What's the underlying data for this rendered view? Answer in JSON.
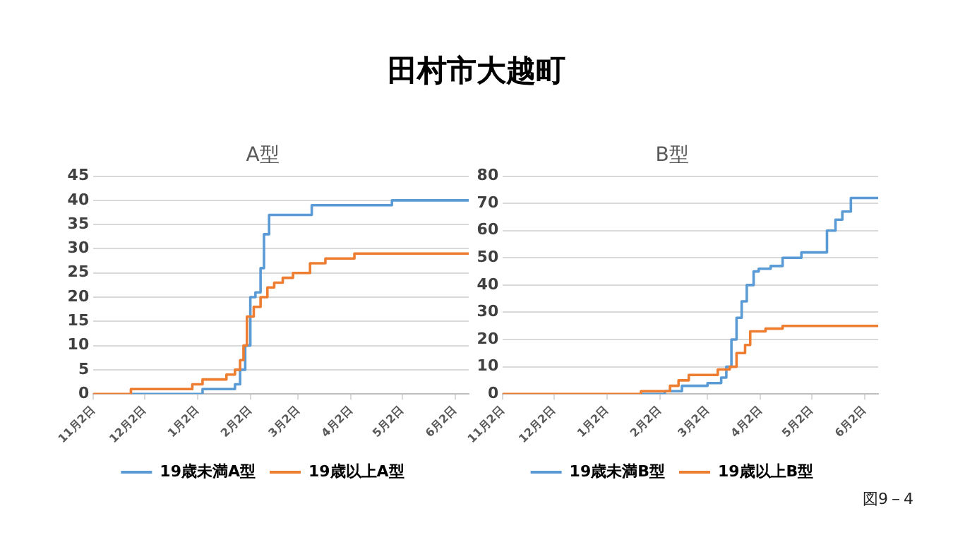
{
  "chart_data": [
    {
      "type": "other",
      "title": "田村市大越町",
      "annotations": [
        "図9－4"
      ]
    },
    {
      "type": "step",
      "title": "A型",
      "categories": [
        "11月2日",
        null,
        null,
        null,
        null,
        null,
        null,
        null,
        null,
        null,
        null,
        null,
        null,
        null,
        null,
        null,
        null,
        null,
        null,
        null,
        null,
        null,
        null,
        null,
        null,
        null,
        null,
        null,
        null,
        null,
        "12月2日",
        null,
        null,
        null,
        null,
        null,
        null,
        null,
        null,
        null,
        null,
        null,
        null,
        null,
        null,
        null,
        null,
        null,
        null,
        null,
        null,
        null,
        null,
        null,
        null,
        null,
        null,
        null,
        null,
        null,
        null,
        "1月2日",
        null,
        null,
        null,
        null,
        null,
        null,
        null,
        null,
        null,
        null,
        null,
        null,
        null,
        null,
        null,
        null,
        null,
        null,
        null,
        null,
        null,
        null,
        null,
        null,
        null,
        null,
        null,
        null,
        null,
        null,
        "2月2日",
        null,
        null,
        null,
        null,
        null,
        null,
        null,
        null,
        null,
        null,
        null,
        null,
        null,
        null,
        null,
        null,
        null,
        null,
        null,
        null,
        null,
        null,
        null,
        null,
        null,
        null,
        null,
        "3月2日",
        null,
        null,
        null,
        null,
        null,
        null,
        null,
        null,
        null,
        null,
        null,
        null,
        null,
        null,
        null,
        null,
        null,
        null,
        null,
        null,
        null,
        null,
        null,
        null,
        null,
        null,
        null,
        null,
        null,
        null,
        "4月2日",
        null,
        null,
        null,
        null,
        null,
        null,
        null,
        null,
        null,
        null,
        null,
        null,
        null,
        null,
        null,
        null,
        null,
        null,
        null,
        null,
        null,
        null,
        null,
        null,
        null,
        null,
        null,
        null,
        null,
        "5月2日",
        null,
        null,
        null,
        null,
        null,
        null,
        null,
        null,
        null,
        null,
        null,
        null,
        null,
        null,
        null,
        null,
        null,
        null,
        null,
        null,
        null,
        null,
        null,
        null,
        null,
        null,
        null,
        null,
        null,
        null,
        "6月2日",
        null,
        null,
        null,
        null,
        null,
        null,
        null,
        null
      ],
      "ylim": [
        0,
        45
      ],
      "yticks": [
        0,
        5,
        10,
        15,
        20,
        25,
        30,
        35,
        40,
        45
      ],
      "grid": "y",
      "legend": "bottom",
      "marker": "none",
      "series": [
        {
          "name": "19歳未満A型",
          "color": "#5b9bd5",
          "values": [
            null,
            null,
            null,
            null,
            null,
            null,
            null,
            null,
            null,
            null,
            null,
            null,
            null,
            null,
            null,
            null,
            null,
            null,
            null,
            null,
            null,
            null,
            0,
            0,
            0,
            0,
            0,
            0,
            0,
            0,
            0,
            0,
            0,
            0,
            0,
            0,
            0,
            0,
            0,
            0,
            0,
            0,
            0,
            0,
            0,
            0,
            0,
            0,
            0,
            0,
            0,
            0,
            0,
            0,
            0,
            0,
            0,
            0,
            0,
            0,
            0,
            0,
            0,
            0,
            1,
            1,
            1,
            1,
            1,
            1,
            1,
            1,
            1,
            1,
            1,
            1,
            1,
            1,
            1,
            1,
            1,
            1,
            1,
            2,
            2,
            2,
            5,
            5,
            5,
            10,
            10,
            10,
            20,
            20,
            20,
            21,
            21,
            21,
            26,
            26,
            33,
            33,
            33,
            37,
            37,
            37,
            37,
            37,
            37,
            37,
            37,
            37,
            37,
            37,
            37,
            37,
            37,
            37,
            37,
            37,
            37,
            37,
            37,
            37,
            37,
            37,
            37,
            37,
            39,
            39,
            39,
            39,
            39,
            39,
            39,
            39,
            39,
            39,
            39,
            39,
            39,
            39,
            39,
            39,
            39,
            39,
            39,
            39,
            39,
            39,
            39,
            39,
            39,
            39,
            39,
            39,
            39,
            39,
            39,
            39,
            39,
            39,
            39,
            39,
            39,
            39,
            39,
            39,
            39,
            39,
            39,
            39,
            39,
            39,
            39,
            40,
            40,
            40,
            40,
            40,
            40,
            40,
            40,
            40,
            40,
            40,
            40,
            40,
            40,
            40,
            40,
            40,
            40,
            40,
            40,
            40,
            40,
            40,
            40,
            40,
            40,
            40,
            40,
            40,
            40,
            40,
            40,
            40,
            40,
            40,
            40,
            40,
            40,
            40,
            40,
            40,
            40,
            40,
            40,
            40,
            40
          ]
        },
        {
          "name": "19歳以上A型",
          "color": "#ed7d31",
          "values": [
            0,
            0,
            0,
            0,
            0,
            0,
            0,
            0,
            0,
            0,
            0,
            0,
            0,
            0,
            0,
            0,
            0,
            0,
            0,
            0,
            0,
            0,
            1,
            1,
            1,
            1,
            1,
            1,
            1,
            1,
            1,
            1,
            1,
            1,
            1,
            1,
            1,
            1,
            1,
            1,
            1,
            1,
            1,
            1,
            1,
            1,
            1,
            1,
            1,
            1,
            1,
            1,
            1,
            1,
            1,
            1,
            1,
            1,
            2,
            2,
            2,
            2,
            2,
            2,
            3,
            3,
            3,
            3,
            3,
            3,
            3,
            3,
            3,
            3,
            3,
            3,
            3,
            3,
            4,
            4,
            4,
            4,
            4,
            5,
            5,
            5,
            7,
            7,
            10,
            10,
            16,
            16,
            16,
            16,
            18,
            18,
            18,
            18,
            20,
            20,
            20,
            20,
            22,
            22,
            22,
            22,
            23,
            23,
            23,
            23,
            23,
            24,
            24,
            24,
            24,
            24,
            24,
            25,
            25,
            25,
            25,
            25,
            25,
            25,
            25,
            25,
            25,
            27,
            27,
            27,
            27,
            27,
            27,
            27,
            27,
            27,
            28,
            28,
            28,
            28,
            28,
            28,
            28,
            28,
            28,
            28,
            28,
            28,
            28,
            28,
            28,
            28,
            28,
            29,
            29,
            29,
            29,
            29,
            29,
            29,
            29,
            29,
            29,
            29,
            29,
            29,
            29,
            29,
            29,
            29,
            29,
            29,
            29,
            29,
            29,
            29,
            29,
            29,
            29,
            29,
            29,
            29,
            29,
            29,
            29,
            29,
            29,
            29,
            29,
            29,
            29,
            29,
            29,
            29,
            29,
            29,
            29,
            29,
            29,
            29,
            29,
            29,
            29,
            29,
            29,
            29,
            29,
            29,
            29,
            29,
            29,
            29,
            29,
            29,
            29,
            29,
            29,
            29,
            29,
            29,
            29
          ]
        }
      ]
    },
    {
      "type": "step",
      "title": "B型",
      "categories": [
        "11月2日",
        null,
        null,
        null,
        null,
        null,
        null,
        null,
        null,
        null,
        null,
        null,
        null,
        null,
        null,
        null,
        null,
        null,
        null,
        null,
        null,
        null,
        null,
        null,
        null,
        null,
        null,
        null,
        null,
        null,
        "12月2日",
        null,
        null,
        null,
        null,
        null,
        null,
        null,
        null,
        null,
        null,
        null,
        null,
        null,
        null,
        null,
        null,
        null,
        null,
        null,
        null,
        null,
        null,
        null,
        null,
        null,
        null,
        null,
        null,
        null,
        null,
        "1月2日",
        null,
        null,
        null,
        null,
        null,
        null,
        null,
        null,
        null,
        null,
        null,
        null,
        null,
        null,
        null,
        null,
        null,
        null,
        null,
        null,
        null,
        null,
        null,
        null,
        null,
        null,
        null,
        null,
        null,
        null,
        "2月2日",
        null,
        null,
        null,
        null,
        null,
        null,
        null,
        null,
        null,
        null,
        null,
        null,
        null,
        null,
        null,
        null,
        null,
        null,
        null,
        null,
        null,
        null,
        null,
        null,
        null,
        null,
        null,
        "3月2日",
        null,
        null,
        null,
        null,
        null,
        null,
        null,
        null,
        null,
        null,
        null,
        null,
        null,
        null,
        null,
        null,
        null,
        null,
        null,
        null,
        null,
        null,
        null,
        null,
        null,
        null,
        null,
        null,
        null,
        null,
        "4月2日",
        null,
        null,
        null,
        null,
        null,
        null,
        null,
        null,
        null,
        null,
        null,
        null,
        null,
        null,
        null,
        null,
        null,
        null,
        null,
        null,
        null,
        null,
        null,
        null,
        null,
        null,
        null,
        null,
        null,
        "5月2日",
        null,
        null,
        null,
        null,
        null,
        null,
        null,
        null,
        null,
        null,
        null,
        null,
        null,
        null,
        null,
        null,
        null,
        null,
        null,
        null,
        null,
        null,
        null,
        null,
        null,
        null,
        null,
        null,
        null,
        null,
        "6月2日",
        null,
        null,
        null,
        null,
        null,
        null,
        null,
        null
      ],
      "ylim": [
        0,
        80
      ],
      "yticks": [
        0,
        10,
        20,
        30,
        40,
        50,
        60,
        70,
        80
      ],
      "grid": "y",
      "legend": "bottom",
      "marker": "none",
      "series": [
        {
          "name": "19歳未満B型",
          "color": "#5b9bd5",
          "values": [
            null,
            null,
            null,
            null,
            null,
            null,
            null,
            null,
            null,
            null,
            null,
            null,
            null,
            null,
            null,
            null,
            null,
            null,
            null,
            null,
            null,
            null,
            null,
            null,
            null,
            null,
            null,
            null,
            null,
            null,
            null,
            null,
            null,
            null,
            null,
            null,
            null,
            null,
            null,
            null,
            null,
            null,
            null,
            null,
            null,
            null,
            null,
            null,
            null,
            null,
            null,
            null,
            null,
            null,
            null,
            null,
            null,
            null,
            null,
            null,
            null,
            null,
            null,
            null,
            null,
            null,
            null,
            null,
            null,
            null,
            null,
            null,
            null,
            null,
            null,
            null,
            null,
            null,
            null,
            null,
            null,
            0,
            0,
            0,
            0,
            0,
            0,
            0,
            0,
            0,
            0,
            0,
            0,
            0,
            0,
            1,
            1,
            1,
            1,
            1,
            1,
            1,
            1,
            1,
            1,
            3,
            3,
            3,
            3,
            3,
            3,
            3,
            3,
            3,
            3,
            3,
            3,
            3,
            3,
            3,
            4,
            4,
            4,
            4,
            4,
            4,
            4,
            4,
            6,
            6,
            6,
            10,
            10,
            10,
            20,
            20,
            20,
            28,
            28,
            28,
            34,
            34,
            34,
            40,
            40,
            40,
            40,
            45,
            45,
            45,
            46,
            46,
            46,
            46,
            46,
            46,
            46,
            47,
            47,
            47,
            47,
            47,
            47,
            47,
            50,
            50,
            50,
            50,
            50,
            50,
            50,
            50,
            50,
            50,
            50,
            52,
            52,
            52,
            52,
            52,
            52,
            52,
            52,
            52,
            52,
            52,
            52,
            52,
            52,
            52,
            60,
            60,
            60,
            60,
            60,
            64,
            64,
            64,
            64,
            67,
            67,
            67,
            67,
            67,
            72,
            72,
            72,
            72,
            72,
            72,
            72,
            72,
            72,
            72,
            72,
            72,
            72,
            72,
            72,
            72,
            72
          ]
        },
        {
          "name": "19歳以上B型",
          "color": "#ed7d31",
          "values": [
            0,
            0,
            0,
            0,
            0,
            0,
            0,
            0,
            0,
            0,
            0,
            0,
            0,
            0,
            0,
            0,
            0,
            0,
            0,
            0,
            0,
            0,
            0,
            0,
            0,
            0,
            0,
            0,
            0,
            0,
            0,
            0,
            0,
            0,
            0,
            0,
            0,
            0,
            0,
            0,
            0,
            0,
            0,
            0,
            0,
            0,
            0,
            0,
            0,
            0,
            0,
            0,
            0,
            0,
            0,
            0,
            0,
            0,
            0,
            0,
            0,
            0,
            0,
            0,
            0,
            0,
            0,
            0,
            0,
            0,
            0,
            0,
            0,
            0,
            0,
            0,
            0,
            0,
            0,
            0,
            0,
            1,
            1,
            1,
            1,
            1,
            1,
            1,
            1,
            1,
            1,
            1,
            1,
            1,
            1,
            1,
            1,
            1,
            3,
            3,
            3,
            3,
            3,
            5,
            5,
            5,
            5,
            5,
            5,
            7,
            7,
            7,
            7,
            7,
            7,
            7,
            7,
            7,
            7,
            7,
            7,
            7,
            7,
            7,
            7,
            7,
            9,
            9,
            9,
            9,
            9,
            9,
            9,
            10,
            10,
            10,
            10,
            15,
            15,
            15,
            15,
            15,
            18,
            18,
            18,
            23,
            23,
            23,
            23,
            23,
            23,
            23,
            23,
            23,
            24,
            24,
            24,
            24,
            24,
            24,
            24,
            24,
            24,
            24,
            25,
            25,
            25,
            25,
            25,
            25,
            25,
            25,
            25,
            25,
            25,
            25,
            25,
            25,
            25,
            25,
            25,
            25,
            25,
            25,
            25,
            25,
            25,
            25,
            25,
            25,
            25,
            25,
            25,
            25,
            25,
            25,
            25,
            25,
            25,
            25,
            25,
            25,
            25,
            25,
            25,
            25,
            25,
            25,
            25,
            25,
            25,
            25,
            25,
            25,
            25,
            25,
            25,
            25,
            25,
            25,
            25
          ]
        }
      ]
    }
  ]
}
